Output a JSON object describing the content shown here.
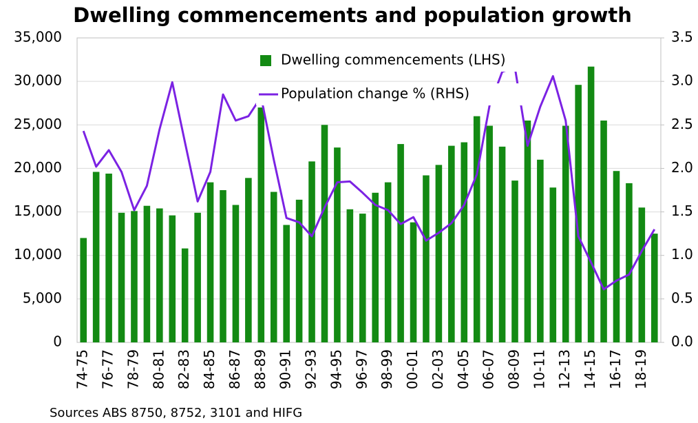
{
  "chart_data": {
    "type": "bar_line",
    "title": "Dwelling commencements and population growth",
    "source": "Sources ABS 8750, 8752, 3101 and HIFG",
    "categories": [
      "74-75",
      null,
      "76-77",
      null,
      "78-79",
      null,
      "80-81",
      null,
      "82-83",
      null,
      "84-85",
      null,
      "86-87",
      null,
      "88-89",
      null,
      "90-91",
      null,
      "92-93",
      null,
      "94-95",
      null,
      "96-97",
      null,
      "98-99",
      null,
      "00-01",
      null,
      "02-03",
      null,
      "04-05",
      null,
      "06-07",
      null,
      "08-09",
      null,
      "10-11",
      null,
      "12-13",
      null,
      "14-15",
      null,
      "16-17",
      null,
      "18-19",
      null
    ],
    "series": [
      {
        "name": "Dwelling commencements (LHS)",
        "color": "#138a13",
        "kind": "bar",
        "values": [
          12000,
          19600,
          19400,
          14900,
          15100,
          15700,
          15400,
          14600,
          10800,
          14900,
          18400,
          17500,
          15800,
          18900,
          27000,
          17300,
          13500,
          16400,
          20800,
          25000,
          22400,
          15300,
          14800,
          17200,
          18400,
          22800,
          13800,
          19200,
          20400,
          22600,
          23000,
          26000,
          24900,
          22500,
          18600,
          25500,
          21000,
          17800,
          24900,
          29600,
          31700,
          25500,
          19700,
          18300,
          15500,
          12500
        ]
      },
      {
        "name": "Population change % (RHS)",
        "color": "#7b22e3",
        "kind": "line",
        "axis": "y2",
        "values": [
          2.43,
          2.02,
          2.21,
          1.96,
          1.52,
          1.8,
          2.45,
          2.99,
          2.3,
          1.62,
          1.96,
          2.85,
          2.55,
          2.6,
          2.82,
          2.1,
          1.43,
          1.38,
          1.22,
          1.55,
          1.84,
          1.85,
          1.72,
          1.58,
          1.52,
          1.36,
          1.44,
          1.17,
          1.26,
          1.37,
          1.58,
          1.93,
          2.72,
          3.11,
          3.16,
          2.26,
          2.71,
          3.06,
          2.55,
          1.22,
          0.92,
          0.61,
          0.71,
          0.78,
          1.05,
          1.3
        ]
      }
    ],
    "ylim": [
      0,
      35000
    ],
    "yticks": [
      0,
      {
        "value": 5000,
        "label": "5,000"
      },
      {
        "value": 10000,
        "label": "10,000"
      },
      {
        "value": 15000,
        "label": "15,000"
      },
      {
        "value": 20000,
        "label": "20,000"
      },
      {
        "value": 25000,
        "label": "25,000"
      },
      {
        "value": 30000,
        "label": "30,000"
      },
      {
        "value": 35000,
        "label": "35,000"
      }
    ],
    "y2lim": [
      0,
      3.5
    ],
    "y2ticks": [
      {
        "value": 0,
        "label": "0.0"
      },
      0.5,
      {
        "value": 1,
        "label": "1.0"
      },
      1.5,
      {
        "value": 2,
        "label": "2.0"
      },
      2.5,
      {
        "value": 3,
        "label": "3.0"
      },
      3.5
    ],
    "grid": true
  }
}
